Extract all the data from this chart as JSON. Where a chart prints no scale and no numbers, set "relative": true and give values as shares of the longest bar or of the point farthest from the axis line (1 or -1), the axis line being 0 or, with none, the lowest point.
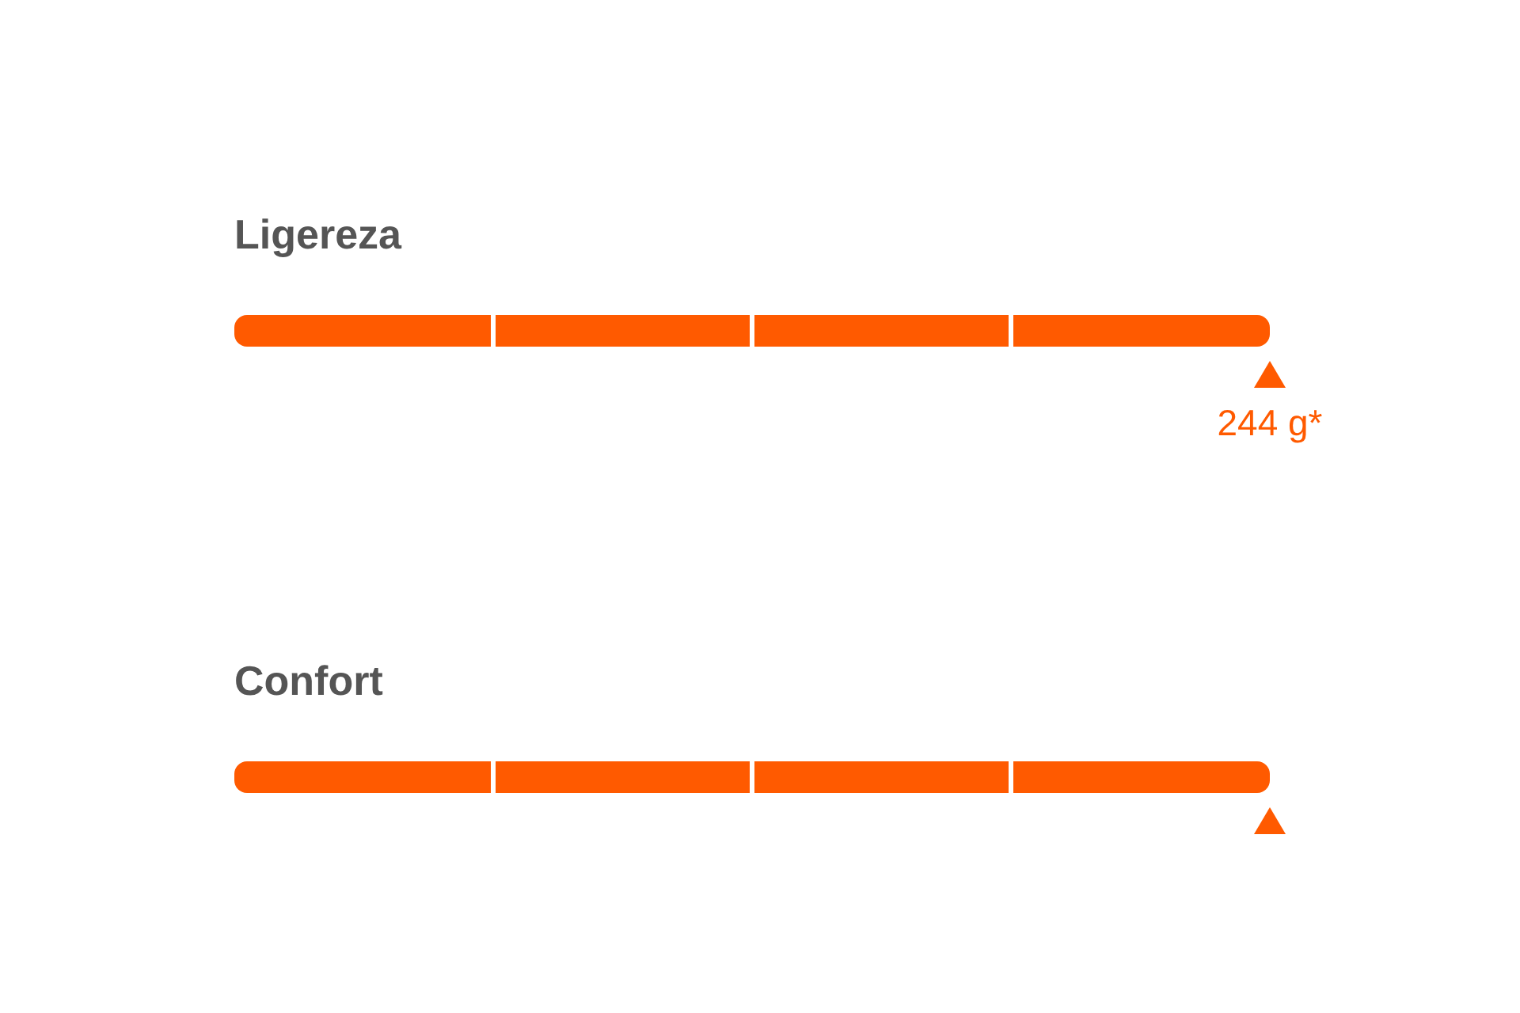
{
  "chart_data": {
    "type": "bar",
    "orientation": "horizontal",
    "relative": true,
    "categories": [
      "Ligereza",
      "Confort"
    ],
    "values": [
      1,
      1
    ],
    "color": "#ff5a00",
    "marker": "triangle",
    "annotations": [
      "244 g*"
    ]
  }
}
